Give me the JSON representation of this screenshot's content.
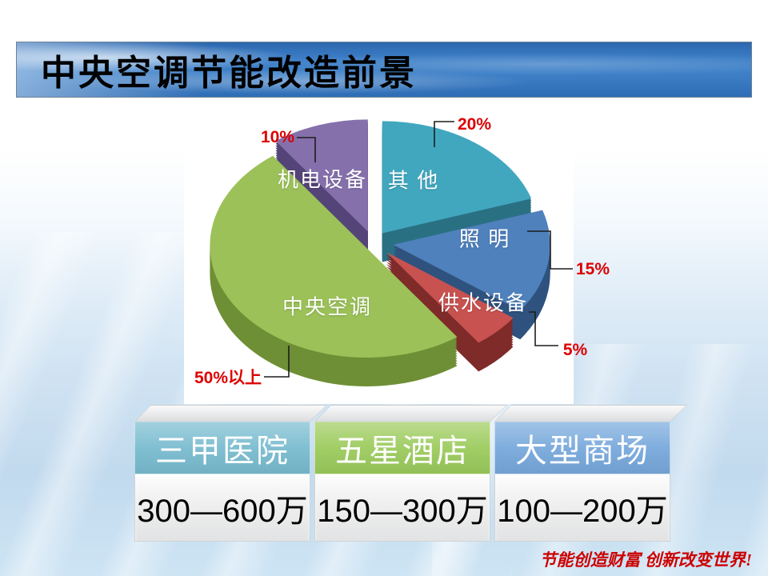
{
  "slide": {
    "title": "中央空调节能改造前景",
    "footer_slogan": "节能创造财富 创新改变世界!",
    "footer_color": "#CC0000",
    "banner_color": "#3c7ec6"
  },
  "chart_data": {
    "type": "pie",
    "style": "3d-exploded",
    "title": "",
    "unit": "percent of building energy consumption",
    "start_angle_deg": -90,
    "direction": "clockwise",
    "callout_color": "#DD0000",
    "slices": [
      {
        "label": "其 他",
        "value": 20,
        "pct_label": "20%",
        "color": "#41A7BF",
        "dark": "#2A7083"
      },
      {
        "label": "照 明",
        "value": 15,
        "pct_label": "15%",
        "color": "#4F81BD",
        "dark": "#2F527E"
      },
      {
        "label": "供水设备",
        "value": 5,
        "pct_label": "5%",
        "color": "#C85250",
        "dark": "#7E2B29"
      },
      {
        "label": "中央空调",
        "value": 50,
        "pct_label": "50%以上",
        "color": "#9BC158",
        "dark": "#6E8F35"
      },
      {
        "label": "机电设备",
        "value": 10,
        "pct_label": "10%",
        "color": "#8570AC",
        "dark": "#554478"
      }
    ]
  },
  "table": {
    "columns": [
      {
        "header": "三甲医院",
        "value": "300—600万",
        "header_color": "#79BCCF"
      },
      {
        "header": "五星酒店",
        "value": "150—300万",
        "header_color": "#9CCB5D"
      },
      {
        "header": "大型商场",
        "value": "100—200万",
        "header_color": "#78A9DC"
      }
    ]
  }
}
